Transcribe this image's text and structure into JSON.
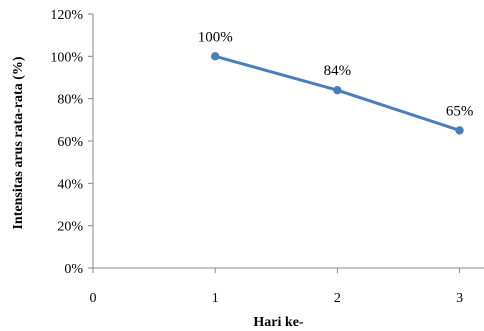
{
  "chart_data": {
    "type": "line",
    "title": "",
    "xlabel": "Hari ke-",
    "ylabel": "Intensitas arus rata-rata (%)",
    "xlim": [
      0,
      3.2
    ],
    "ylim": [
      0,
      120
    ],
    "x_ticks": [
      "0",
      "1",
      "2",
      "3"
    ],
    "y_ticks": [
      "0%",
      "20%",
      "40%",
      "60%",
      "80%",
      "100%",
      "120%"
    ],
    "grid": false,
    "legend": "none",
    "series": [
      {
        "color": "#4a7ebb",
        "x": [
          1,
          2,
          3
        ],
        "y": [
          100,
          84,
          65
        ],
        "labels": [
          "100%",
          "84%",
          "65%"
        ]
      }
    ]
  }
}
